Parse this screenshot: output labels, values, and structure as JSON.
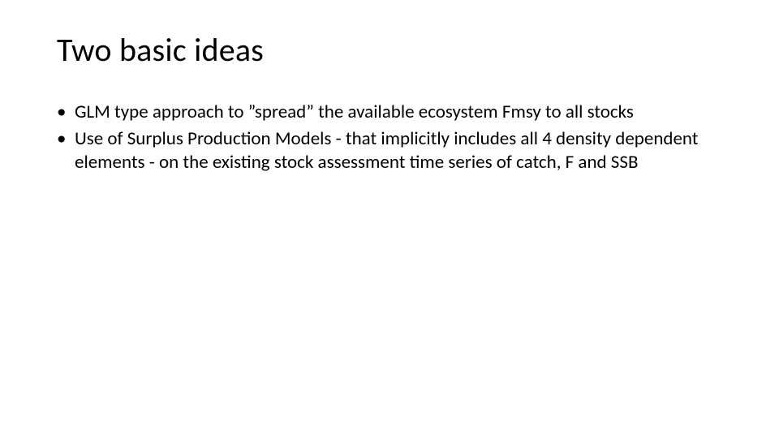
{
  "slide": {
    "title": "Two basic ideas",
    "title_fontsize": 40,
    "title_color": "#000000",
    "background_color": "#ffffff",
    "bullets": [
      "GLM type approach to ”spread” the available ecosystem Fmsy to all stocks",
      "Use of Surplus Production Models  - that implicitly includes all 4 density dependent elements - on the existing stock assessment time series of catch, F and SSB"
    ],
    "bullet_fontsize": 23,
    "bullet_color": "#000000",
    "font_family": "Calibri"
  }
}
